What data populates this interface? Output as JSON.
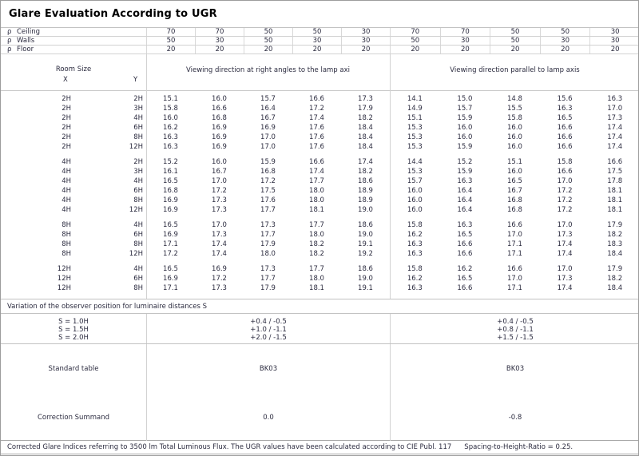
{
  "title": "Glare Evaluation According to UGR",
  "reflectance": {
    "rows": [
      {
        "symbol": "ρ",
        "label": "Ceiling",
        "values": [
          "70",
          "70",
          "50",
          "50",
          "30",
          "70",
          "70",
          "50",
          "50",
          "30"
        ]
      },
      {
        "symbol": "ρ",
        "label": "Walls",
        "values": [
          "50",
          "30",
          "50",
          "30",
          "30",
          "50",
          "30",
          "50",
          "30",
          "30"
        ]
      },
      {
        "symbol": "ρ",
        "label": "Floor",
        "values": [
          "20",
          "20",
          "20",
          "20",
          "20",
          "20",
          "20",
          "20",
          "20",
          "20"
        ]
      }
    ]
  },
  "header": {
    "room_size": "Room Size",
    "x_label": "X",
    "y_label": "Y",
    "left_heading": "Viewing direction at right angles to the lamp axi",
    "right_heading": "Viewing direction parallel to lamp axis"
  },
  "ugr_table": {
    "blocks": [
      {
        "rows": [
          {
            "x": "2H",
            "y": "2H",
            "left": [
              "15.1",
              "16.0",
              "15.7",
              "16.6",
              "17.3"
            ],
            "right": [
              "14.1",
              "15.0",
              "14.8",
              "15.6",
              "16.3"
            ]
          },
          {
            "x": "2H",
            "y": "3H",
            "left": [
              "15.8",
              "16.6",
              "16.4",
              "17.2",
              "17.9"
            ],
            "right": [
              "14.9",
              "15.7",
              "15.5",
              "16.3",
              "17.0"
            ]
          },
          {
            "x": "2H",
            "y": "4H",
            "left": [
              "16.0",
              "16.8",
              "16.7",
              "17.4",
              "18.2"
            ],
            "right": [
              "15.1",
              "15.9",
              "15.8",
              "16.5",
              "17.3"
            ]
          },
          {
            "x": "2H",
            "y": "6H",
            "left": [
              "16.2",
              "16.9",
              "16.9",
              "17.6",
              "18.4"
            ],
            "right": [
              "15.3",
              "16.0",
              "16.0",
              "16.6",
              "17.4"
            ]
          },
          {
            "x": "2H",
            "y": "8H",
            "left": [
              "16.3",
              "16.9",
              "17.0",
              "17.6",
              "18.4"
            ],
            "right": [
              "15.3",
              "16.0",
              "16.0",
              "16.6",
              "17.4"
            ]
          },
          {
            "x": "2H",
            "y": "12H",
            "left": [
              "16.3",
              "16.9",
              "17.0",
              "17.6",
              "18.4"
            ],
            "right": [
              "15.3",
              "15.9",
              "16.0",
              "16.6",
              "17.4"
            ]
          }
        ]
      },
      {
        "rows": [
          {
            "x": "4H",
            "y": "2H",
            "left": [
              "15.2",
              "16.0",
              "15.9",
              "16.6",
              "17.4"
            ],
            "right": [
              "14.4",
              "15.2",
              "15.1",
              "15.8",
              "16.6"
            ]
          },
          {
            "x": "4H",
            "y": "3H",
            "left": [
              "16.1",
              "16.7",
              "16.8",
              "17.4",
              "18.2"
            ],
            "right": [
              "15.3",
              "15.9",
              "16.0",
              "16.6",
              "17.5"
            ]
          },
          {
            "x": "4H",
            "y": "4H",
            "left": [
              "16.5",
              "17.0",
              "17.2",
              "17.7",
              "18.6"
            ],
            "right": [
              "15.7",
              "16.3",
              "16.5",
              "17.0",
              "17.8"
            ]
          },
          {
            "x": "4H",
            "y": "6H",
            "left": [
              "16.8",
              "17.2",
              "17.5",
              "18.0",
              "18.9"
            ],
            "right": [
              "16.0",
              "16.4",
              "16.7",
              "17.2",
              "18.1"
            ]
          },
          {
            "x": "4H",
            "y": "8H",
            "left": [
              "16.9",
              "17.3",
              "17.6",
              "18.0",
              "18.9"
            ],
            "right": [
              "16.0",
              "16.4",
              "16.8",
              "17.2",
              "18.1"
            ]
          },
          {
            "x": "4H",
            "y": "12H",
            "left": [
              "16.9",
              "17.3",
              "17.7",
              "18.1",
              "19.0"
            ],
            "right": [
              "16.0",
              "16.4",
              "16.8",
              "17.2",
              "18.1"
            ]
          }
        ]
      },
      {
        "rows": [
          {
            "x": "8H",
            "y": "4H",
            "left": [
              "16.5",
              "17.0",
              "17.3",
              "17.7",
              "18.6"
            ],
            "right": [
              "15.8",
              "16.3",
              "16.6",
              "17.0",
              "17.9"
            ]
          },
          {
            "x": "8H",
            "y": "6H",
            "left": [
              "16.9",
              "17.3",
              "17.7",
              "18.0",
              "19.0"
            ],
            "right": [
              "16.2",
              "16.5",
              "17.0",
              "17.3",
              "18.2"
            ]
          },
          {
            "x": "8H",
            "y": "8H",
            "left": [
              "17.1",
              "17.4",
              "17.9",
              "18.2",
              "19.1"
            ],
            "right": [
              "16.3",
              "16.6",
              "17.1",
              "17.4",
              "18.3"
            ]
          },
          {
            "x": "8H",
            "y": "12H",
            "left": [
              "17.2",
              "17.4",
              "18.0",
              "18.2",
              "19.2"
            ],
            "right": [
              "16.3",
              "16.6",
              "17.1",
              "17.4",
              "18.4"
            ]
          }
        ]
      },
      {
        "rows": [
          {
            "x": "12H",
            "y": "4H",
            "left": [
              "16.5",
              "16.9",
              "17.3",
              "17.7",
              "18.6"
            ],
            "right": [
              "15.8",
              "16.2",
              "16.6",
              "17.0",
              "17.9"
            ]
          },
          {
            "x": "12H",
            "y": "6H",
            "left": [
              "16.9",
              "17.2",
              "17.7",
              "18.0",
              "19.0"
            ],
            "right": [
              "16.2",
              "16.5",
              "17.0",
              "17.3",
              "18.2"
            ]
          },
          {
            "x": "12H",
            "y": "8H",
            "left": [
              "17.1",
              "17.3",
              "17.9",
              "18.1",
              "19.1"
            ],
            "right": [
              "16.3",
              "16.6",
              "17.1",
              "17.4",
              "18.4"
            ]
          }
        ]
      }
    ]
  },
  "variation": {
    "note": "Variation of the observer position for luminaire distances S",
    "rows": [
      {
        "label": "S = 1.0H",
        "left": "+0.4 / -0.5",
        "right": "+0.4 / -0.5"
      },
      {
        "label": "S = 1.5H",
        "left": "+1.0 / -1.1",
        "right": "+0.8 / -1.1"
      },
      {
        "label": "S = 2.0H",
        "left": "+2.0 / -1.5",
        "right": "+1.5 / -1.5"
      }
    ]
  },
  "summary": {
    "standard_table_label": "Standard table",
    "standard_table_left": "BK03",
    "standard_table_right": "BK03",
    "correction_label": "Correction Summand",
    "correction_left": "0.0",
    "correction_right": "-0.8"
  },
  "footer": {
    "text1": "Corrected Glare Indices referring to 3500 lm Total Luminous Flux. The UGR values have been calculated according to CIE Publ. 117",
    "text2": "Spacing-to-Height-Ratio = 0.25."
  },
  "colors": {
    "background": "#ffffff",
    "text": "#2b2b3f",
    "border_light": "#d2d2d2",
    "border_medium": "#c2c2c2",
    "border_outer": "#9c9c9c"
  }
}
